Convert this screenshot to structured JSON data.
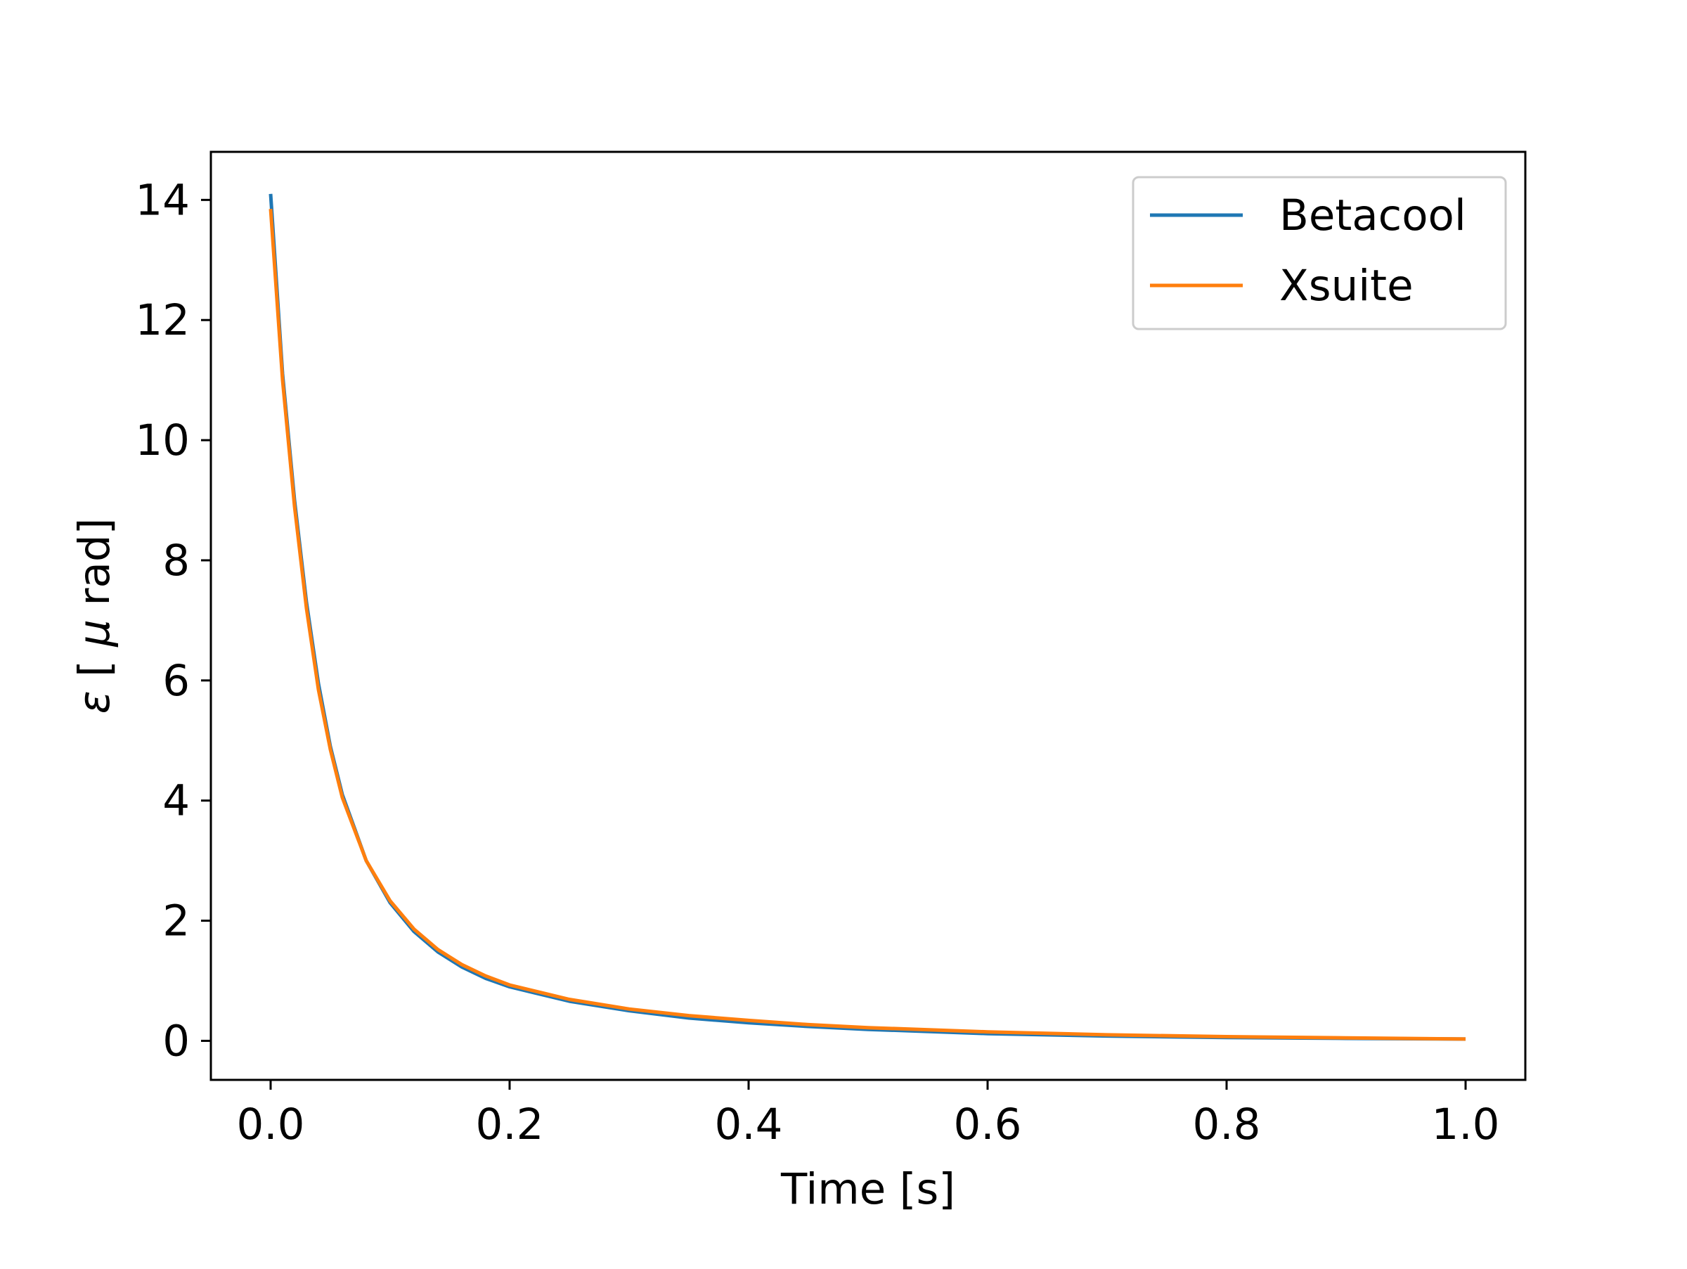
{
  "chart_data": {
    "type": "line",
    "title": "",
    "xlabel": "Time [s]",
    "ylabel_symbol": "ε",
    "ylabel_prefix": "[",
    "ylabel_mu": "μ",
    "ylabel_unit": " rad]",
    "xlim": [
      -0.05,
      1.05
    ],
    "ylim": [
      -0.65,
      14.8
    ],
    "xticks": [
      0.0,
      0.2,
      0.4,
      0.6,
      0.8,
      1.0
    ],
    "xtick_labels": [
      "0.0",
      "0.2",
      "0.4",
      "0.6",
      "0.8",
      "1.0"
    ],
    "yticks": [
      0,
      2,
      4,
      6,
      8,
      10,
      12,
      14
    ],
    "ytick_labels": [
      "0",
      "2",
      "4",
      "6",
      "8",
      "10",
      "12",
      "14"
    ],
    "grid": false,
    "legend_position": "top-right",
    "series": [
      {
        "name": "Betacool",
        "color": "#1f77b4",
        "x": [
          0.0,
          0.01,
          0.02,
          0.03,
          0.04,
          0.05,
          0.06,
          0.08,
          0.1,
          0.12,
          0.14,
          0.16,
          0.18,
          0.2,
          0.25,
          0.3,
          0.35,
          0.4,
          0.45,
          0.5,
          0.6,
          0.7,
          0.8,
          0.9,
          1.0
        ],
        "y": [
          14.1,
          11.1,
          9.0,
          7.3,
          5.95,
          4.9,
          4.1,
          3.0,
          2.3,
          1.82,
          1.48,
          1.23,
          1.04,
          0.9,
          0.66,
          0.5,
          0.38,
          0.3,
          0.24,
          0.19,
          0.12,
          0.08,
          0.055,
          0.04,
          0.03
        ]
      },
      {
        "name": "Xsuite",
        "color": "#ff7f0e",
        "x": [
          0.0,
          0.01,
          0.02,
          0.03,
          0.04,
          0.05,
          0.06,
          0.08,
          0.1,
          0.12,
          0.14,
          0.16,
          0.18,
          0.2,
          0.25,
          0.3,
          0.35,
          0.4,
          0.45,
          0.5,
          0.6,
          0.7,
          0.8,
          0.9,
          1.0
        ],
        "y": [
          13.85,
          11.0,
          8.9,
          7.2,
          5.85,
          4.85,
          4.05,
          3.0,
          2.33,
          1.86,
          1.52,
          1.27,
          1.08,
          0.93,
          0.69,
          0.53,
          0.42,
          0.34,
          0.27,
          0.22,
          0.15,
          0.1,
          0.07,
          0.05,
          0.03
        ]
      }
    ]
  }
}
